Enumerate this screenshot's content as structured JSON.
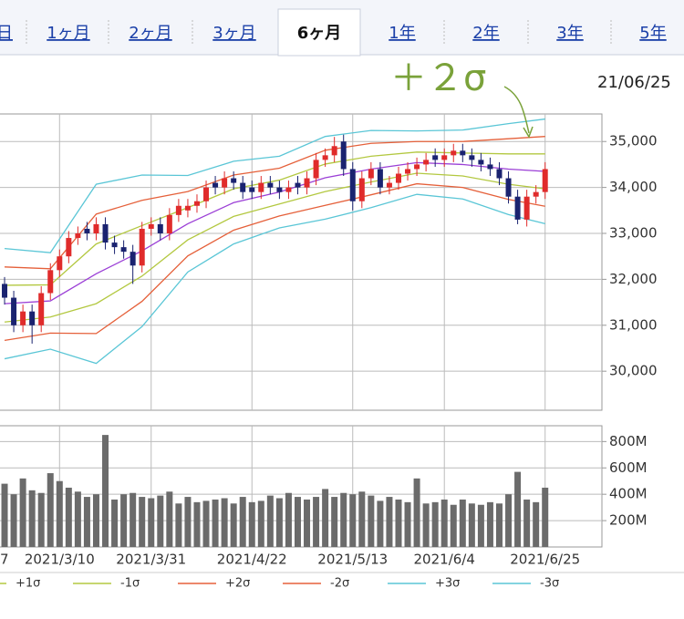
{
  "tabs": {
    "items": [
      "日",
      "1ヶ月",
      "2ヶ月",
      "3ヶ月",
      "6ヶ月",
      "1年",
      "2年",
      "3年",
      "5年"
    ],
    "selected": 4
  },
  "chart_data": [
    {
      "type": "candlestick",
      "annotation": "＋２σ",
      "annotation_color": "#7aa23a",
      "date_label": "21/06/25",
      "up_color": "#e02b2b",
      "down_color": "#1a2370",
      "open": [
        31900,
        31600,
        31000,
        31300,
        31000,
        31700,
        32200,
        32500,
        32900,
        33100,
        33000,
        33200,
        32800,
        32700,
        32600,
        32300,
        33100,
        33200,
        33000,
        33400,
        33500,
        33600,
        33700,
        34100,
        34000,
        34200,
        34100,
        34000,
        33900,
        34100,
        34000,
        33900,
        34100,
        34000,
        34200,
        34600,
        34700,
        35000,
        34400,
        33700,
        34200,
        34400,
        34000,
        34100,
        34300,
        34400,
        34500,
        34700,
        34600,
        34700,
        34800,
        34700,
        34600,
        34500,
        34400,
        34200,
        33800,
        33300,
        33800,
        33900
      ],
      "high": [
        32050,
        31750,
        31450,
        31450,
        31850,
        32350,
        32650,
        33050,
        33150,
        33250,
        33350,
        33350,
        32950,
        32850,
        32750,
        33250,
        33350,
        33350,
        33550,
        33750,
        33750,
        33850,
        34150,
        34250,
        34350,
        34350,
        34250,
        34150,
        34250,
        34250,
        34150,
        34150,
        34250,
        34350,
        34750,
        34850,
        35100,
        35150,
        34550,
        34350,
        34550,
        34550,
        34250,
        34450,
        34550,
        34650,
        34750,
        34850,
        34850,
        34950,
        34950,
        34850,
        34750,
        34650,
        34550,
        34350,
        33950,
        33950,
        34050,
        34550
      ],
      "low": [
        31450,
        30850,
        30850,
        30600,
        30850,
        31550,
        32050,
        32350,
        32750,
        32850,
        32850,
        32650,
        32550,
        32450,
        31900,
        32150,
        32950,
        32850,
        32850,
        33250,
        33350,
        33450,
        33550,
        33850,
        33850,
        33950,
        33750,
        33750,
        33750,
        33850,
        33750,
        33750,
        33850,
        33850,
        34050,
        34450,
        34550,
        34250,
        33500,
        33550,
        34050,
        33850,
        33850,
        33950,
        34150,
        34250,
        34350,
        34450,
        34450,
        34550,
        34550,
        34450,
        34350,
        34250,
        34050,
        33650,
        33200,
        33150,
        33650,
        33750
      ],
      "close": [
        31600,
        31000,
        31300,
        31000,
        31700,
        32200,
        32500,
        32900,
        33000,
        33000,
        33200,
        32800,
        32700,
        32600,
        32300,
        33100,
        33200,
        33000,
        33400,
        33600,
        33600,
        33700,
        34000,
        34000,
        34200,
        34100,
        33900,
        33900,
        34100,
        34000,
        33900,
        34000,
        34000,
        34200,
        34600,
        34700,
        34900,
        34400,
        33700,
        34200,
        34400,
        34000,
        34100,
        34300,
        34400,
        34500,
        34600,
        34600,
        34700,
        34800,
        34700,
        34600,
        34500,
        34400,
        34200,
        33800,
        33300,
        33800,
        33900,
        34400
      ],
      "band_x": [
        0,
        5,
        10,
        15,
        20,
        25,
        30,
        35,
        40,
        45,
        50,
        55,
        59
      ],
      "series": [
        {
          "color": "#9b3fd6",
          "values": [
            31470,
            31530,
            32120,
            32620,
            33210,
            33670,
            33900,
            34210,
            34400,
            34540,
            34500,
            34400,
            34350
          ]
        },
        {
          "name": "+1σ",
          "color": "#b3c840",
          "values": [
            31870,
            31880,
            32770,
            33170,
            33560,
            33970,
            34160,
            34510,
            34680,
            34770,
            34750,
            34730,
            34730
          ]
        },
        {
          "name": "-1σ",
          "color": "#b3c840",
          "values": [
            31070,
            31180,
            31470,
            32070,
            32860,
            33370,
            33640,
            33910,
            34120,
            34310,
            34250,
            34070,
            33970
          ]
        },
        {
          "name": "+2σ",
          "color": "#e5603a",
          "values": [
            32270,
            32230,
            33420,
            33720,
            33910,
            34270,
            34420,
            34810,
            34960,
            35000,
            35000,
            35060,
            35110
          ]
        },
        {
          "name": "-2σ",
          "color": "#e5603a",
          "values": [
            30670,
            30830,
            30820,
            31520,
            32510,
            33070,
            33380,
            33610,
            33840,
            34080,
            34000,
            33740,
            33590
          ]
        },
        {
          "name": "+3σ",
          "color": "#5ac6d6",
          "values": [
            32670,
            32580,
            34070,
            34270,
            34260,
            34570,
            34680,
            35110,
            35240,
            35230,
            35250,
            35390,
            35490
          ]
        },
        {
          "name": "-3σ",
          "color": "#5ac6d6",
          "values": [
            30270,
            30480,
            30170,
            30970,
            32160,
            32770,
            33120,
            33310,
            33560,
            33850,
            33750,
            33410,
            33210
          ]
        }
      ],
      "xlim": [
        -0.5,
        65.2
      ],
      "xticks": [
        {
          "value": 6,
          "label": "2021/3/10"
        },
        {
          "value": 16,
          "label": "2021/3/31"
        },
        {
          "value": 27,
          "label": "2021/4/22"
        },
        {
          "value": 38,
          "label": "2021/5/13"
        },
        {
          "value": 48,
          "label": "2021/6/4"
        },
        {
          "value": 59,
          "label": "2021/6/25"
        }
      ],
      "x_tick_partial": "7",
      "ylim": [
        29150,
        35600
      ],
      "yticks": [
        {
          "value": 30000,
          "label": "30,000"
        },
        {
          "value": 31000,
          "label": "31,000"
        },
        {
          "value": 32000,
          "label": "32,000"
        },
        {
          "value": 33000,
          "label": "33,000"
        },
        {
          "value": 34000,
          "label": "34,000"
        },
        {
          "value": 35000,
          "label": "35,000"
        }
      ],
      "grid": true
    },
    {
      "type": "bar",
      "color": "#6b6b6b",
      "values": [
        480,
        400,
        520,
        430,
        410,
        560,
        500,
        450,
        420,
        380,
        400,
        850,
        360,
        400,
        410,
        380,
        370,
        390,
        420,
        330,
        380,
        340,
        350,
        360,
        370,
        330,
        380,
        340,
        350,
        390,
        370,
        410,
        380,
        360,
        380,
        440,
        380,
        410,
        400,
        420,
        390,
        350,
        380,
        360,
        340,
        520,
        330,
        340,
        360,
        320,
        360,
        330,
        320,
        340,
        330,
        400,
        570,
        360,
        340,
        450
      ],
      "ylim": [
        0,
        920
      ],
      "yticks": [
        {
          "value": 200,
          "label": "200M"
        },
        {
          "value": 400,
          "label": "400M"
        },
        {
          "value": 600,
          "label": "600M"
        },
        {
          "value": 800,
          "label": "800M"
        }
      ],
      "grid": true
    }
  ]
}
